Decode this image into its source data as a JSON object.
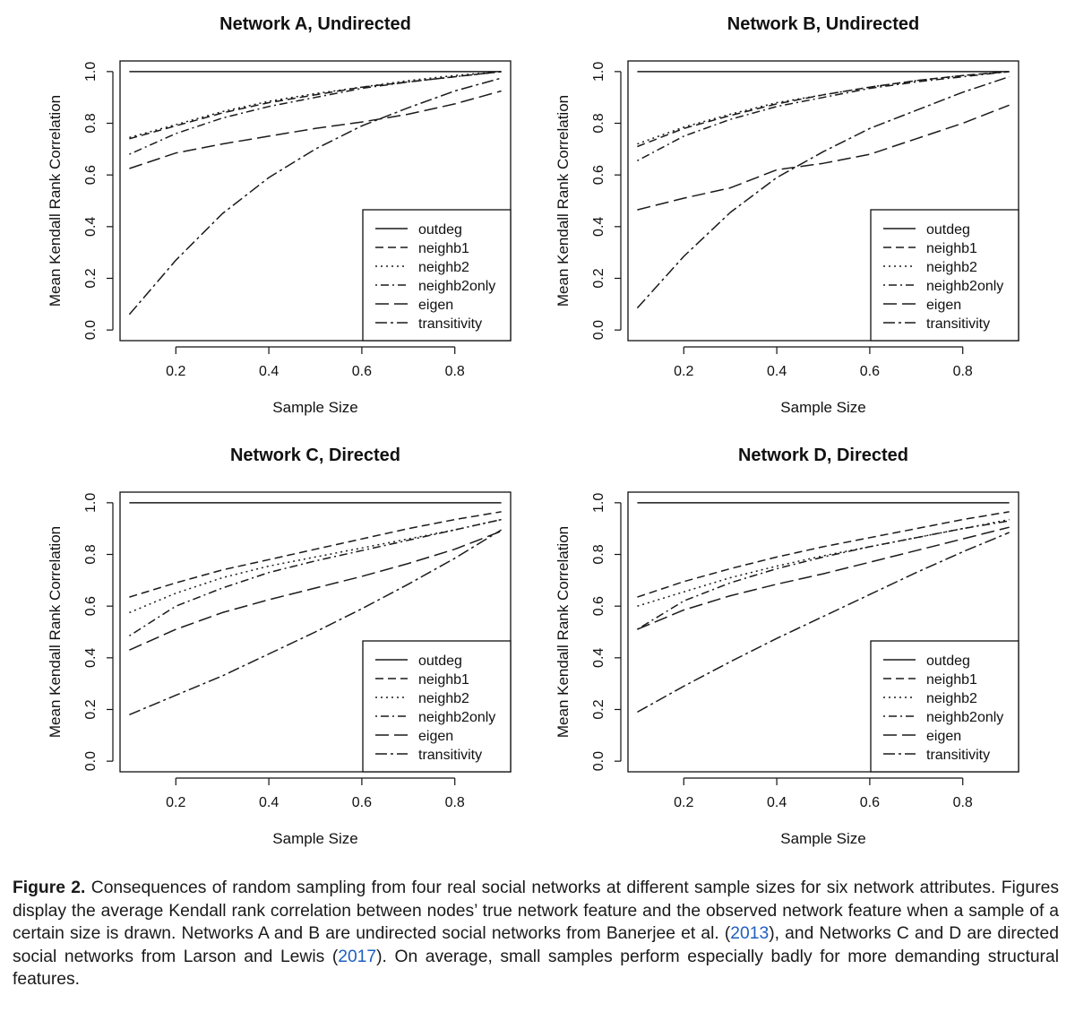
{
  "chart_data": [
    {
      "type": "line",
      "title": "Network A, Undirected",
      "xlabel": "Sample Size",
      "ylabel": "Mean Kendall Rank Correlation",
      "xlim": [
        0.08,
        0.92
      ],
      "ylim": [
        0.0,
        1.0
      ],
      "xticks": [
        "0.2",
        "0.4",
        "0.6",
        "0.8"
      ],
      "yticks": [
        "0.0",
        "0.2",
        "0.4",
        "0.6",
        "0.8",
        "1.0"
      ],
      "legend_position": "bottom-right",
      "x": [
        0.1,
        0.2,
        0.3,
        0.4,
        0.5,
        0.6,
        0.7,
        0.8,
        0.9
      ],
      "series": [
        {
          "name": "outdeg",
          "values": [
            1.0,
            1.0,
            1.0,
            1.0,
            1.0,
            1.0,
            1.0,
            1.0,
            1.0
          ]
        },
        {
          "name": "neighb1",
          "values": [
            0.74,
            0.79,
            0.84,
            0.88,
            0.91,
            0.94,
            0.96,
            0.98,
            1.0
          ]
        },
        {
          "name": "neighb2",
          "values": [
            0.745,
            0.795,
            0.845,
            0.885,
            0.915,
            0.94,
            0.965,
            0.985,
            1.0
          ]
        },
        {
          "name": "neighb2only",
          "values": [
            0.68,
            0.76,
            0.82,
            0.865,
            0.9,
            0.935,
            0.96,
            0.98,
            1.0
          ]
        },
        {
          "name": "eigen",
          "values": [
            0.625,
            0.685,
            0.72,
            0.75,
            0.78,
            0.805,
            0.835,
            0.875,
            0.925
          ]
        },
        {
          "name": "transitivity",
          "values": [
            0.06,
            0.27,
            0.45,
            0.59,
            0.7,
            0.79,
            0.86,
            0.925,
            0.975
          ]
        }
      ]
    },
    {
      "type": "line",
      "title": "Network B, Undirected",
      "xlabel": "Sample Size",
      "ylabel": "Mean Kendall Rank Correlation",
      "xlim": [
        0.08,
        0.92
      ],
      "ylim": [
        0.0,
        1.0
      ],
      "xticks": [
        "0.2",
        "0.4",
        "0.6",
        "0.8"
      ],
      "yticks": [
        "0.0",
        "0.2",
        "0.4",
        "0.6",
        "0.8",
        "1.0"
      ],
      "legend_position": "bottom-right",
      "x": [
        0.1,
        0.2,
        0.3,
        0.4,
        0.5,
        0.6,
        0.7,
        0.8,
        0.9
      ],
      "series": [
        {
          "name": "outdeg",
          "values": [
            1.0,
            1.0,
            1.0,
            1.0,
            1.0,
            1.0,
            1.0,
            1.0,
            1.0
          ]
        },
        {
          "name": "neighb1",
          "values": [
            0.71,
            0.78,
            0.83,
            0.875,
            0.91,
            0.94,
            0.965,
            0.985,
            1.0
          ]
        },
        {
          "name": "neighb2",
          "values": [
            0.72,
            0.785,
            0.835,
            0.88,
            0.91,
            0.94,
            0.965,
            0.985,
            1.0
          ]
        },
        {
          "name": "neighb2only",
          "values": [
            0.655,
            0.75,
            0.815,
            0.865,
            0.9,
            0.935,
            0.96,
            0.98,
            1.0
          ]
        },
        {
          "name": "eigen",
          "values": [
            0.465,
            0.51,
            0.55,
            0.62,
            0.645,
            0.68,
            0.74,
            0.8,
            0.87
          ]
        },
        {
          "name": "transitivity",
          "values": [
            0.085,
            0.285,
            0.455,
            0.59,
            0.69,
            0.78,
            0.85,
            0.92,
            0.98
          ]
        }
      ]
    },
    {
      "type": "line",
      "title": "Network C, Directed",
      "xlabel": "Sample Size",
      "ylabel": "Mean Kendall Rank Correlation",
      "xlim": [
        0.08,
        0.92
      ],
      "ylim": [
        0.0,
        1.0
      ],
      "xticks": [
        "0.2",
        "0.4",
        "0.6",
        "0.8"
      ],
      "yticks": [
        "0.0",
        "0.2",
        "0.4",
        "0.6",
        "0.8",
        "1.0"
      ],
      "legend_position": "bottom-right",
      "x": [
        0.1,
        0.2,
        0.3,
        0.4,
        0.5,
        0.6,
        0.7,
        0.8,
        0.9
      ],
      "series": [
        {
          "name": "outdeg",
          "values": [
            1.0,
            1.0,
            1.0,
            1.0,
            1.0,
            1.0,
            1.0,
            1.0,
            1.0
          ]
        },
        {
          "name": "neighb1",
          "values": [
            0.635,
            0.69,
            0.74,
            0.78,
            0.82,
            0.86,
            0.9,
            0.935,
            0.965
          ]
        },
        {
          "name": "neighb2",
          "values": [
            0.575,
            0.65,
            0.71,
            0.755,
            0.79,
            0.825,
            0.86,
            0.895,
            0.935
          ]
        },
        {
          "name": "neighb2only",
          "values": [
            0.485,
            0.6,
            0.67,
            0.73,
            0.775,
            0.815,
            0.855,
            0.895,
            0.935
          ]
        },
        {
          "name": "eigen",
          "values": [
            0.43,
            0.51,
            0.575,
            0.625,
            0.67,
            0.715,
            0.765,
            0.82,
            0.89
          ]
        },
        {
          "name": "transitivity",
          "values": [
            0.18,
            0.255,
            0.33,
            0.415,
            0.5,
            0.59,
            0.685,
            0.785,
            0.895
          ]
        }
      ]
    },
    {
      "type": "line",
      "title": "Network D, Directed",
      "xlabel": "Sample Size",
      "ylabel": "Mean Kendall Rank Correlation",
      "xlim": [
        0.08,
        0.92
      ],
      "ylim": [
        0.0,
        1.0
      ],
      "xticks": [
        "0.2",
        "0.4",
        "0.6",
        "0.8"
      ],
      "yticks": [
        "0.0",
        "0.2",
        "0.4",
        "0.6",
        "0.8",
        "1.0"
      ],
      "legend_position": "bottom-right",
      "x": [
        0.1,
        0.2,
        0.3,
        0.4,
        0.5,
        0.6,
        0.7,
        0.8,
        0.9
      ],
      "series": [
        {
          "name": "outdeg",
          "values": [
            1.0,
            1.0,
            1.0,
            1.0,
            1.0,
            1.0,
            1.0,
            1.0,
            1.0
          ]
        },
        {
          "name": "neighb1",
          "values": [
            0.635,
            0.695,
            0.745,
            0.79,
            0.83,
            0.865,
            0.9,
            0.935,
            0.965
          ]
        },
        {
          "name": "neighb2",
          "values": [
            0.6,
            0.655,
            0.71,
            0.755,
            0.795,
            0.83,
            0.865,
            0.9,
            0.935
          ]
        },
        {
          "name": "neighb2only",
          "values": [
            0.51,
            0.62,
            0.69,
            0.745,
            0.79,
            0.83,
            0.865,
            0.9,
            0.93
          ]
        },
        {
          "name": "eigen",
          "values": [
            0.51,
            0.585,
            0.64,
            0.685,
            0.725,
            0.77,
            0.815,
            0.86,
            0.905
          ]
        },
        {
          "name": "transitivity",
          "values": [
            0.19,
            0.29,
            0.385,
            0.475,
            0.56,
            0.645,
            0.73,
            0.81,
            0.885
          ]
        }
      ]
    }
  ],
  "caption": {
    "label": "Figure 2.",
    "text_1": "Consequences of random sampling from four real social networks at different sample sizes for six network attributes. Figures display the average Kendall rank correlation between nodes’ true network feature and the observed network feature when a sample of a certain size is drawn. Networks A and B are undirected social networks from Banerjee et al. (",
    "ref_1": "2013",
    "text_2": "), and Networks C and D are directed social networks from Larson and Lewis (",
    "ref_2": "2017",
    "text_3": "). On average, small samples perform especially badly for more demanding structural features."
  }
}
